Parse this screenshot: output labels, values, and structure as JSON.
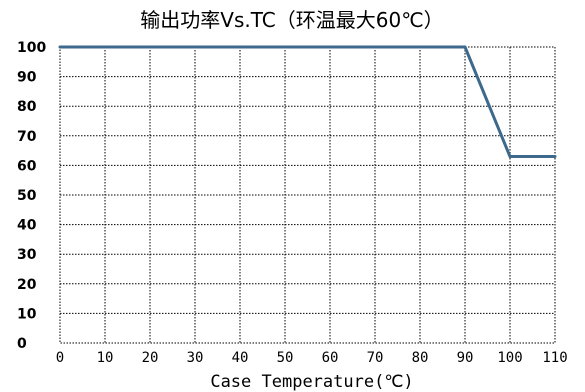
{
  "chart_data": {
    "type": "line",
    "title": "输出功率Vs.TC（环温最大60℃）",
    "xlabel": "Case Temperature(℃)",
    "ylabel": "",
    "x_ticks": [
      0,
      10,
      20,
      30,
      40,
      50,
      60,
      70,
      80,
      90,
      100,
      110
    ],
    "y_ticks": [
      0,
      10,
      20,
      30,
      40,
      50,
      60,
      70,
      80,
      90,
      100
    ],
    "xlim": [
      0,
      110
    ],
    "ylim": [
      0,
      100
    ],
    "grid": true,
    "grid_style": "dotted",
    "legend": "none",
    "series": [
      {
        "x": [
          0,
          90,
          100,
          110
        ],
        "y": [
          100,
          100,
          63,
          63
        ],
        "color": "#3d6a8c"
      }
    ]
  }
}
